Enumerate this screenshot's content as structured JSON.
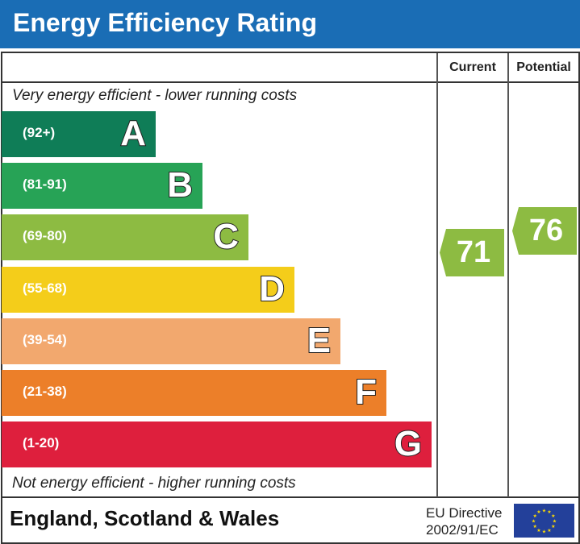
{
  "title": "Energy Efficiency Rating",
  "chart_data": {
    "type": "bar",
    "columns": [
      "Current",
      "Potential"
    ],
    "top_note": "Very energy efficient - lower running costs",
    "bottom_note": "Not energy efficient - higher running costs",
    "bands": [
      {
        "letter": "A",
        "range": "(92+)",
        "color": "#0f7d57"
      },
      {
        "letter": "B",
        "range": "(81-91)",
        "color": "#27a356"
      },
      {
        "letter": "C",
        "range": "(69-80)",
        "color": "#8dbb42"
      },
      {
        "letter": "D",
        "range": "(55-68)",
        "color": "#f4cd1a"
      },
      {
        "letter": "E",
        "range": "(39-54)",
        "color": "#f2a86e"
      },
      {
        "letter": "F",
        "range": "(21-38)",
        "color": "#ec7f29"
      },
      {
        "letter": "G",
        "range": "(1-20)",
        "color": "#de1f3d"
      }
    ],
    "current": {
      "value": "71",
      "band": "C",
      "color": "#8dbb42"
    },
    "potential": {
      "value": "76",
      "band": "C",
      "color": "#8dbb42"
    }
  },
  "footer": {
    "region": "England, Scotland & Wales",
    "directive_line1": "EU Directive",
    "directive_line2": "2002/91/EC"
  }
}
